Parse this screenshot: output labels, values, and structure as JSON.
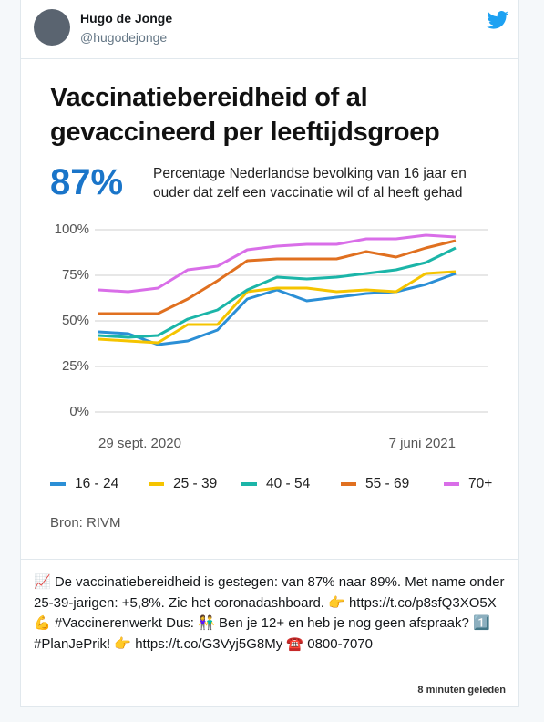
{
  "tweet": {
    "name": "Hugo de Jonge",
    "handle": "@hugodejonge",
    "text": "📈 De vaccinatiebereidheid is gestegen: van 87% naar 89%. Met name onder 25-39-jarigen: +5,8%. Zie het coronadashboard. 👉 https://t.co/p8sfQ3XO5X 💪 #Vaccinerenwerkt Dus: 👫 Ben je 12+ en heb je nog geen afspraak? 1️⃣ #PlanJePrik! 👉 https://t.co/G3Vyj5G8My ☎️ 0800-7070",
    "time": "8 minuten geleden"
  },
  "chart_data": {
    "type": "line",
    "title": "Vaccinatiebereidheid of al gevaccineerd per leeftijdsgroep",
    "highlight": "87%",
    "subtitle": "Percentage Nederlandse bevolking van 16 jaar en ouder dat zelf een vaccinatie wil of al heeft gehad",
    "source": "Bron: RIVM",
    "categories": [
      "29 sept. 2020",
      null,
      null,
      null,
      null,
      null,
      null,
      null,
      null,
      null,
      null,
      null,
      "7 juni 2021"
    ],
    "series": [
      {
        "name": "16 - 24",
        "color": "#2b8fd6",
        "values": [
          44,
          43,
          37,
          39,
          45,
          62,
          67,
          61,
          63,
          65,
          66,
          70,
          76
        ]
      },
      {
        "name": "25 - 39",
        "color": "#f5c400",
        "values": [
          40,
          39,
          38,
          48,
          48,
          66,
          68,
          68,
          66,
          67,
          66,
          76,
          77
        ]
      },
      {
        "name": "40 - 54",
        "color": "#1bb5a8",
        "values": [
          42,
          41,
          42,
          51,
          56,
          67,
          74,
          73,
          74,
          76,
          78,
          82,
          90
        ]
      },
      {
        "name": "55 - 69",
        "color": "#e07020",
        "values": [
          54,
          54,
          54,
          62,
          72,
          83,
          84,
          84,
          84,
          88,
          85,
          90,
          94
        ]
      },
      {
        "name": "70+",
        "color": "#d96ee8",
        "values": [
          67,
          66,
          68,
          78,
          80,
          89,
          91,
          92,
          92,
          95,
          95,
          97,
          96
        ]
      }
    ],
    "ylim": [
      0,
      100
    ],
    "yticks": [
      {
        "value": 0,
        "label": "0%"
      },
      {
        "value": 25,
        "label": "25%"
      },
      {
        "value": 50,
        "label": "50%"
      },
      {
        "value": 75,
        "label": "75%"
      },
      {
        "value": 100,
        "label": "100%"
      }
    ],
    "grid": true,
    "legend": "bottom"
  }
}
